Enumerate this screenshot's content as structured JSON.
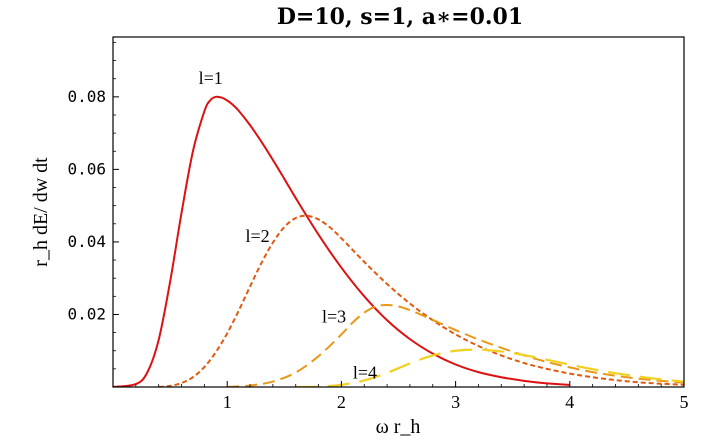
{
  "chart_data": {
    "type": "line",
    "title": "D=10, s=1, a∗=0.01",
    "xlabel": "ω r_h",
    "ylabel": "r_h dE/ dw dt",
    "xlim": [
      0,
      5
    ],
    "ylim": [
      0,
      0.0965
    ],
    "x_ticks": [
      1,
      2,
      3,
      4,
      5
    ],
    "y_ticks": [
      0.02,
      0.04,
      0.06,
      0.08
    ],
    "x_tick_labels": [
      "1",
      "2",
      "3",
      "4",
      "5"
    ],
    "y_tick_labels": [
      "0.02",
      "0.04",
      "0.06",
      "0.08"
    ],
    "grid": false,
    "series": [
      {
        "name": "l=1",
        "color": "#dd1111",
        "dash": "solid",
        "x": [
          0.0,
          0.2,
          0.3,
          0.4,
          0.5,
          0.6,
          0.7,
          0.8,
          0.85,
          0.9,
          0.95,
          1.0,
          1.05,
          1.1,
          1.2,
          1.3,
          1.4,
          1.5,
          1.6,
          1.8,
          2.0,
          2.2,
          2.4,
          2.6,
          2.8,
          3.0,
          3.2,
          3.4,
          3.6,
          3.8,
          4.0
        ],
        "y": [
          0.0,
          0.0008,
          0.004,
          0.013,
          0.029,
          0.048,
          0.065,
          0.076,
          0.079,
          0.08,
          0.0798,
          0.079,
          0.0778,
          0.0762,
          0.0722,
          0.0676,
          0.0626,
          0.0574,
          0.0521,
          0.042,
          0.0329,
          0.025,
          0.0184,
          0.0132,
          0.0092,
          0.0062,
          0.0041,
          0.0027,
          0.0017,
          0.001,
          0.0006
        ]
      },
      {
        "name": "l=2",
        "color": "#e05a10",
        "dash": "short",
        "x": [
          0.4,
          0.5,
          0.6,
          0.7,
          0.8,
          0.9,
          1.0,
          1.1,
          1.2,
          1.3,
          1.4,
          1.5,
          1.6,
          1.7,
          1.8,
          1.9,
          2.0,
          2.2,
          2.4,
          2.6,
          2.8,
          3.0,
          3.2,
          3.4,
          3.6,
          3.8,
          4.0,
          4.2,
          4.4,
          4.6,
          4.8,
          5.0
        ],
        "y": [
          0.0,
          0.0003,
          0.0011,
          0.0027,
          0.0055,
          0.0096,
          0.0148,
          0.021,
          0.0277,
          0.0342,
          0.0398,
          0.0441,
          0.0466,
          0.0472,
          0.0462,
          0.044,
          0.041,
          0.0345,
          0.0284,
          0.023,
          0.0184,
          0.0145,
          0.0113,
          0.0087,
          0.0066,
          0.005,
          0.0037,
          0.0027,
          0.0019,
          0.0013,
          0.0009,
          0.0006
        ]
      },
      {
        "name": "l=3",
        "color": "#e89818",
        "dash": "medium",
        "x": [
          1.0,
          1.2,
          1.4,
          1.6,
          1.8,
          2.0,
          2.1,
          2.2,
          2.3,
          2.4,
          2.5,
          2.6,
          2.7,
          2.8,
          3.0,
          3.2,
          3.4,
          3.6,
          3.8,
          4.0,
          4.2,
          4.4,
          4.6,
          4.8,
          5.0
        ],
        "y": [
          0.0,
          0.0004,
          0.0015,
          0.004,
          0.0085,
          0.0145,
          0.0178,
          0.0205,
          0.0222,
          0.0226,
          0.0222,
          0.0212,
          0.0199,
          0.0185,
          0.0157,
          0.0131,
          0.0108,
          0.0087,
          0.0069,
          0.0054,
          0.0041,
          0.0031,
          0.0023,
          0.0017,
          0.0012
        ]
      },
      {
        "name": "l=4",
        "color": "#f2d020",
        "dash": "long",
        "x": [
          1.6,
          1.8,
          2.0,
          2.2,
          2.4,
          2.6,
          2.8,
          3.0,
          3.2,
          3.4,
          3.6,
          3.8,
          4.0,
          4.2,
          4.4,
          4.6,
          4.8,
          5.0
        ],
        "y": [
          0.0,
          0.0001,
          0.0006,
          0.0018,
          0.0039,
          0.0065,
          0.0087,
          0.01,
          0.0103,
          0.0098,
          0.0088,
          0.0075,
          0.0062,
          0.0049,
          0.0038,
          0.0029,
          0.0021,
          0.0015
        ]
      }
    ],
    "annotations": [
      {
        "text": "l=1",
        "x": 0.75,
        "y": 0.0835
      },
      {
        "text": "l=2",
        "x": 1.16,
        "y": 0.04
      },
      {
        "text": "l=3",
        "x": 1.83,
        "y": 0.0178
      },
      {
        "text": "l=4",
        "x": 2.1,
        "y": 0.0023
      }
    ]
  }
}
